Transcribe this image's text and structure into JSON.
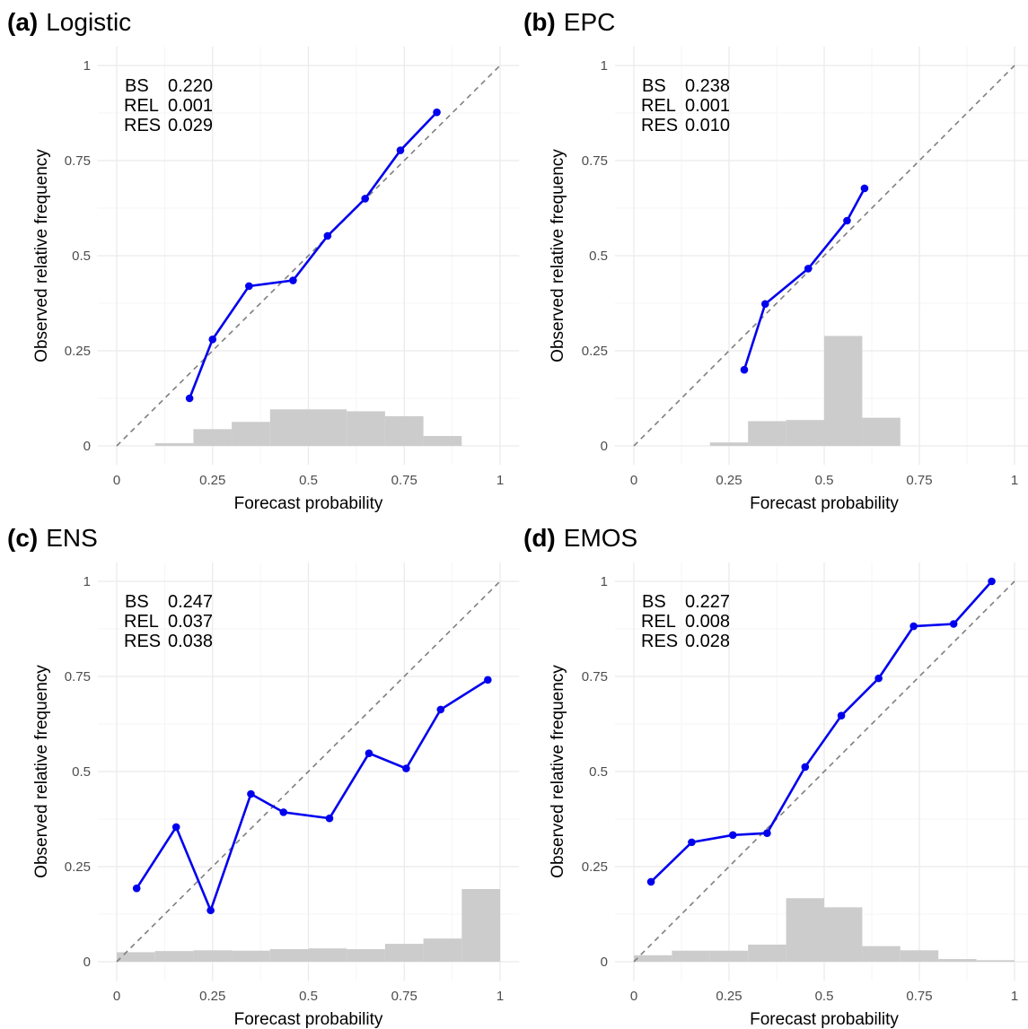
{
  "chart_data": [
    {
      "type": "line",
      "panel_tag": "(a)",
      "title": "Logistic",
      "xlabel": "Forecast probability",
      "ylabel": "Observed relative frequency",
      "xlim": [
        0,
        1
      ],
      "ylim": [
        0,
        1
      ],
      "x_ticks": [
        "0",
        "0.25",
        "0.5",
        "0.75",
        "1"
      ],
      "y_ticks": [
        "0",
        "0.25",
        "0.5",
        "0.75",
        "1"
      ],
      "grid": true,
      "stats": [
        {
          "label": "BS",
          "value": "0.220"
        },
        {
          "label": "REL",
          "value": "0.001"
        },
        {
          "label": "RES",
          "value": "0.029"
        }
      ],
      "reliability_points": [
        [
          0.19,
          0.125
        ],
        [
          0.25,
          0.28
        ],
        [
          0.345,
          0.42
        ],
        [
          0.46,
          0.435
        ],
        [
          0.55,
          0.552
        ],
        [
          0.648,
          0.65
        ],
        [
          0.74,
          0.777
        ],
        [
          0.835,
          0.877
        ]
      ],
      "histogram": [
        {
          "x0": 0.1,
          "x1": 0.2,
          "h": 0.007
        },
        {
          "x0": 0.2,
          "x1": 0.3,
          "h": 0.044
        },
        {
          "x0": 0.3,
          "x1": 0.4,
          "h": 0.063
        },
        {
          "x0": 0.4,
          "x1": 0.5,
          "h": 0.096
        },
        {
          "x0": 0.5,
          "x1": 0.6,
          "h": 0.096
        },
        {
          "x0": 0.6,
          "x1": 0.7,
          "h": 0.091
        },
        {
          "x0": 0.7,
          "x1": 0.8,
          "h": 0.078
        },
        {
          "x0": 0.8,
          "x1": 0.9,
          "h": 0.026
        }
      ]
    },
    {
      "type": "line",
      "panel_tag": "(b)",
      "title": "EPC",
      "xlabel": "Forecast probability",
      "ylabel": "Observed relative frequency",
      "xlim": [
        0,
        1
      ],
      "ylim": [
        0,
        1
      ],
      "x_ticks": [
        "0",
        "0.25",
        "0.5",
        "0.75",
        "1"
      ],
      "y_ticks": [
        "0",
        "0.25",
        "0.5",
        "0.75",
        "1"
      ],
      "grid": true,
      "stats": [
        {
          "label": "BS",
          "value": "0.238"
        },
        {
          "label": "REL",
          "value": "0.001"
        },
        {
          "label": "RES",
          "value": "0.010"
        }
      ],
      "reliability_points": [
        [
          0.29,
          0.2
        ],
        [
          0.345,
          0.373
        ],
        [
          0.458,
          0.466
        ],
        [
          0.56,
          0.592
        ],
        [
          0.606,
          0.677
        ]
      ],
      "histogram": [
        {
          "x0": 0.2,
          "x1": 0.3,
          "h": 0.009
        },
        {
          "x0": 0.3,
          "x1": 0.4,
          "h": 0.065
        },
        {
          "x0": 0.4,
          "x1": 0.5,
          "h": 0.068
        },
        {
          "x0": 0.5,
          "x1": 0.6,
          "h": 0.289
        },
        {
          "x0": 0.6,
          "x1": 0.7,
          "h": 0.074
        }
      ]
    },
    {
      "type": "line",
      "panel_tag": "(c)",
      "title": "ENS",
      "xlabel": "Forecast probability",
      "ylabel": "Observed relative frequency",
      "xlim": [
        0,
        1
      ],
      "ylim": [
        0,
        1
      ],
      "x_ticks": [
        "0",
        "0.25",
        "0.5",
        "0.75",
        "1"
      ],
      "y_ticks": [
        "0",
        "0.25",
        "0.5",
        "0.75",
        "1"
      ],
      "grid": true,
      "stats": [
        {
          "label": "BS",
          "value": "0.247"
        },
        {
          "label": "REL",
          "value": "0.037"
        },
        {
          "label": "RES",
          "value": "0.038"
        }
      ],
      "reliability_points": [
        [
          0.052,
          0.193
        ],
        [
          0.155,
          0.354
        ],
        [
          0.245,
          0.135
        ],
        [
          0.35,
          0.441
        ],
        [
          0.435,
          0.393
        ],
        [
          0.555,
          0.377
        ],
        [
          0.658,
          0.548
        ],
        [
          0.755,
          0.508
        ],
        [
          0.845,
          0.663
        ],
        [
          0.968,
          0.741
        ]
      ],
      "histogram": [
        {
          "x0": 0.0,
          "x1": 0.1,
          "h": 0.025
        },
        {
          "x0": 0.1,
          "x1": 0.2,
          "h": 0.028
        },
        {
          "x0": 0.2,
          "x1": 0.3,
          "h": 0.03
        },
        {
          "x0": 0.3,
          "x1": 0.4,
          "h": 0.029
        },
        {
          "x0": 0.4,
          "x1": 0.5,
          "h": 0.033
        },
        {
          "x0": 0.5,
          "x1": 0.6,
          "h": 0.035
        },
        {
          "x0": 0.6,
          "x1": 0.7,
          "h": 0.033
        },
        {
          "x0": 0.7,
          "x1": 0.8,
          "h": 0.047
        },
        {
          "x0": 0.8,
          "x1": 0.9,
          "h": 0.061
        },
        {
          "x0": 0.9,
          "x1": 1.0,
          "h": 0.191
        }
      ]
    },
    {
      "type": "line",
      "panel_tag": "(d)",
      "title": "EMOS",
      "xlabel": "Forecast probability",
      "ylabel": "Observed relative frequency",
      "xlim": [
        0,
        1
      ],
      "ylim": [
        0,
        1
      ],
      "x_ticks": [
        "0",
        "0.25",
        "0.5",
        "0.75",
        "1"
      ],
      "y_ticks": [
        "0",
        "0.25",
        "0.5",
        "0.75",
        "1"
      ],
      "grid": true,
      "stats": [
        {
          "label": "BS",
          "value": "0.227"
        },
        {
          "label": "REL",
          "value": "0.008"
        },
        {
          "label": "RES",
          "value": "0.028"
        }
      ],
      "reliability_points": [
        [
          0.045,
          0.21
        ],
        [
          0.152,
          0.314
        ],
        [
          0.26,
          0.333
        ],
        [
          0.35,
          0.338
        ],
        [
          0.45,
          0.512
        ],
        [
          0.545,
          0.647
        ],
        [
          0.643,
          0.745
        ],
        [
          0.735,
          0.882
        ],
        [
          0.84,
          0.888
        ],
        [
          0.94,
          1.0
        ]
      ],
      "histogram": [
        {
          "x0": 0.0,
          "x1": 0.1,
          "h": 0.017
        },
        {
          "x0": 0.1,
          "x1": 0.2,
          "h": 0.029
        },
        {
          "x0": 0.2,
          "x1": 0.3,
          "h": 0.029
        },
        {
          "x0": 0.3,
          "x1": 0.4,
          "h": 0.045
        },
        {
          "x0": 0.4,
          "x1": 0.5,
          "h": 0.167
        },
        {
          "x0": 0.5,
          "x1": 0.6,
          "h": 0.143
        },
        {
          "x0": 0.6,
          "x1": 0.7,
          "h": 0.041
        },
        {
          "x0": 0.7,
          "x1": 0.8,
          "h": 0.03
        },
        {
          "x0": 0.8,
          "x1": 0.9,
          "h": 0.007
        },
        {
          "x0": 0.9,
          "x1": 1.0,
          "h": 0.004
        }
      ]
    }
  ]
}
